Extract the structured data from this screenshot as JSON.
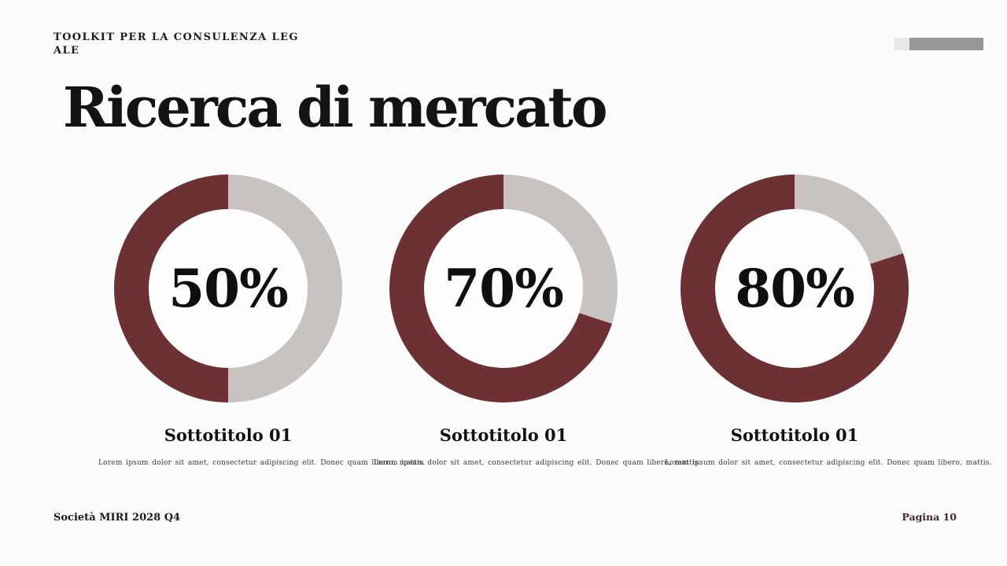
{
  "slide": {
    "header": {
      "kicker_line1": "TOOLKIT PER LA CONSULENZA LEG",
      "kicker_line2": "ALE"
    },
    "title": "Ricerca di mercato",
    "footer": {
      "company": "Società MIRI 2028 Q4",
      "page": "Pagina 10"
    }
  },
  "colors": {
    "page_background": "#fdfcfc",
    "accent_maroon": "#6e3133",
    "track_gray": "#c8c2c0",
    "progress_elapsed": "#e9e8e8",
    "progress_remaining": "#989797",
    "page_number_text": "#42282a",
    "text_black": "#131313"
  },
  "chart_data": [
    {
      "type": "pie",
      "subtype": "donut",
      "percent": 50,
      "center_label": "50%",
      "subtitle": "Sottotitolo 01",
      "description": "Lorem ipsum dolor sit amet, consectetur adipiscing elit. Donec quam libero, mattis.",
      "series": [
        {
          "name": "filled",
          "value": 50,
          "color": "#6e3133"
        },
        {
          "name": "remaining",
          "value": 50,
          "color": "#c8c2c0"
        }
      ],
      "start": "top",
      "fill_direction": "counterclockwise",
      "legend": "none"
    },
    {
      "type": "pie",
      "subtype": "donut",
      "percent": 70,
      "center_label": "70%",
      "subtitle": "Sottotitolo 01",
      "description": "Lorem ipsum dolor sit amet, consectetur adipiscing elit. Donec quam libero, mattis.",
      "series": [
        {
          "name": "filled",
          "value": 70,
          "color": "#6e3133"
        },
        {
          "name": "remaining",
          "value": 30,
          "color": "#c8c2c0"
        }
      ],
      "start": "top",
      "fill_direction": "counterclockwise",
      "legend": "none"
    },
    {
      "type": "pie",
      "subtype": "donut",
      "percent": 80,
      "center_label": "80%",
      "subtitle": "Sottotitolo 01",
      "description": "Lorem ipsum dolor sit amet, consectetur adipiscing elit. Donec quam libero, mattis.",
      "series": [
        {
          "name": "filled",
          "value": 80,
          "color": "#6e3133"
        },
        {
          "name": "remaining",
          "value": 20,
          "color": "#c8c2c0"
        }
      ],
      "start": "top",
      "fill_direction": "counterclockwise",
      "legend": "none"
    }
  ]
}
